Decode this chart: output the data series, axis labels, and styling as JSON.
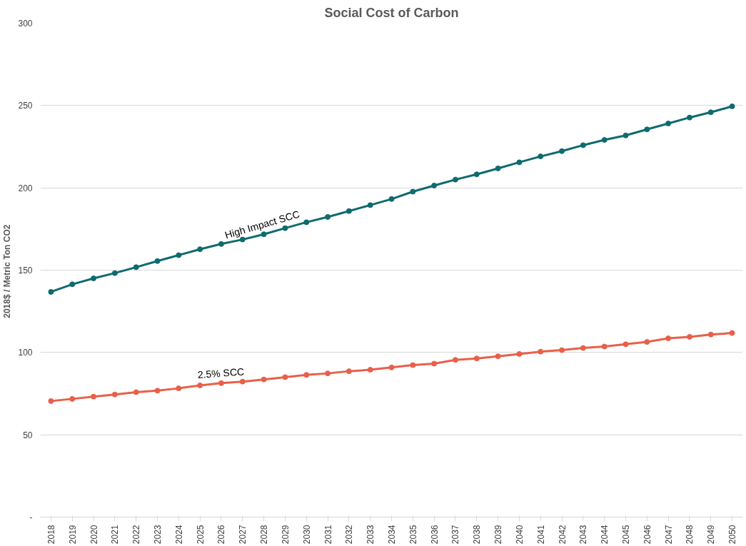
{
  "chart_data": {
    "type": "line",
    "title": "Social Cost of Carbon",
    "ylabel": "2018$ / Metric  Ton CO2",
    "categories": [
      "2018",
      "2019",
      "2020",
      "2021",
      "2022",
      "2023",
      "2024",
      "2025",
      "2026",
      "2027",
      "2028",
      "2029",
      "2030",
      "2031",
      "2032",
      "2033",
      "2034",
      "2035",
      "2036",
      "2037",
      "2038",
      "2039",
      "2040",
      "2041",
      "2042",
      "2043",
      "2044",
      "2045",
      "2046",
      "2047",
      "2048",
      "2049",
      "2050"
    ],
    "series": [
      {
        "color": "#0f6b6e",
        "values": [
          136.8,
          141.4,
          145,
          148.2,
          151.8,
          155.5,
          159.1,
          162.7,
          165.9,
          168.6,
          171.8,
          175.5,
          179.1,
          182.3,
          185.9,
          189.5,
          193.2,
          197.7,
          201.4,
          205,
          208.2,
          211.8,
          215.5,
          219.1,
          222.3,
          225.9,
          229.1,
          231.8,
          235.5,
          239.1,
          242.7,
          245.9,
          249.5
        ]
      },
      {
        "color": "#e8604a",
        "values": [
          70.5,
          71.8,
          73.2,
          74.5,
          75.9,
          76.8,
          78.2,
          80,
          81.4,
          82.3,
          83.6,
          85,
          86.4,
          87.3,
          88.6,
          89.5,
          90.9,
          92.3,
          93.2,
          95.5,
          96.4,
          97.7,
          99.1,
          100.5,
          101.4,
          102.7,
          103.6,
          105,
          106.4,
          108.6,
          109.5,
          110.9,
          111.8
        ]
      }
    ],
    "annotations": [
      "High Impact SCC",
      "2.5% SCC"
    ],
    "ylim": [
      0,
      300
    ],
    "yticks": [
      {
        "value": 0,
        "label": "-"
      },
      50,
      100,
      150,
      200,
      250,
      300
    ],
    "grid": "y",
    "marker": "circle",
    "line_style": "solid"
  }
}
